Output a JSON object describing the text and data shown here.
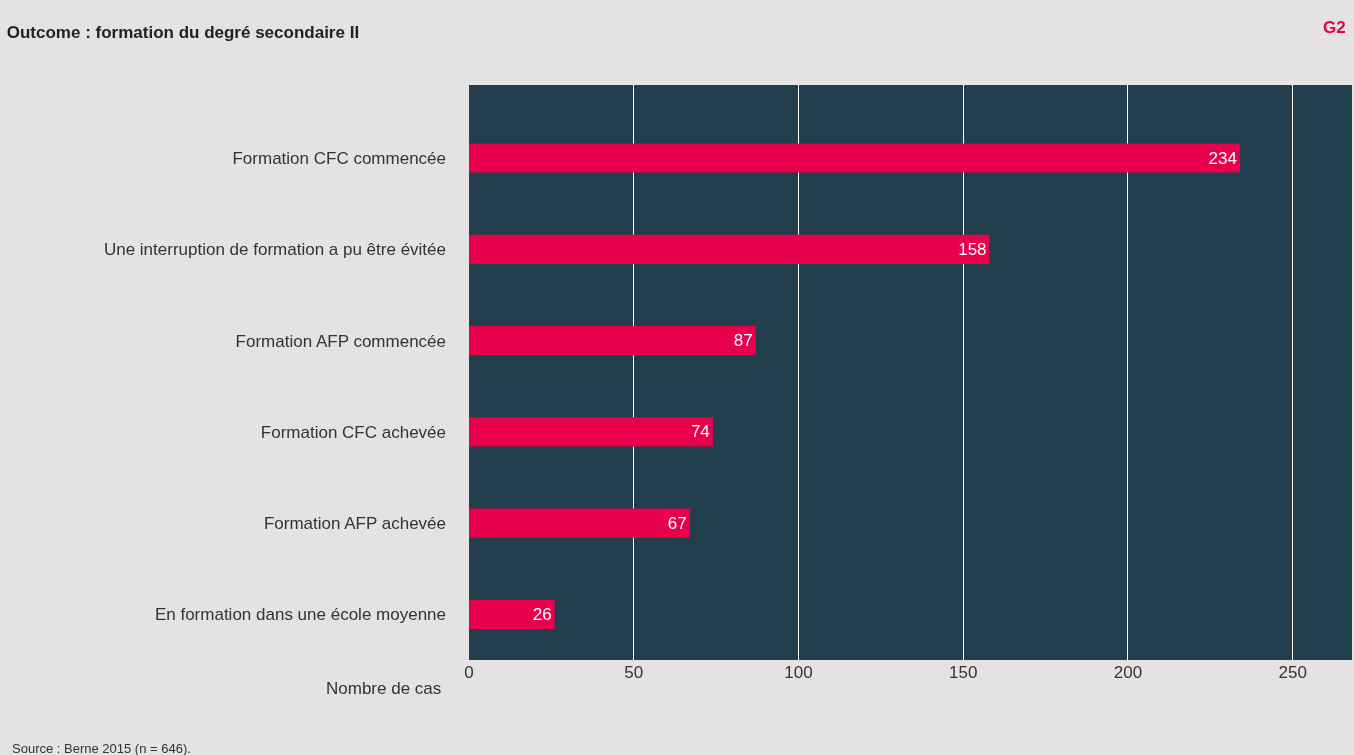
{
  "chart_data": {
    "type": "bar",
    "orientation": "horizontal",
    "title": "Outcome : formation du degré secondaire II",
    "xlabel": "Nombre de cas",
    "categories": [
      "Formation CFC commencée",
      "Une interruption de formation a pu être évitée",
      "Formation AFP commencée",
      "Formation CFC achevée",
      "Formation AFP achevée",
      "En formation dans une école moyenne"
    ],
    "values": [
      234,
      158,
      87,
      74,
      67,
      26
    ],
    "color": "#e8004c",
    "data_labels": true,
    "xlim": [
      0,
      268
    ],
    "xticks": [
      0,
      50,
      100,
      150,
      200,
      250
    ],
    "grid": "x",
    "legend": false,
    "annotations": [
      "G2",
      "Source : Berne 2015 (n = 646)."
    ]
  }
}
